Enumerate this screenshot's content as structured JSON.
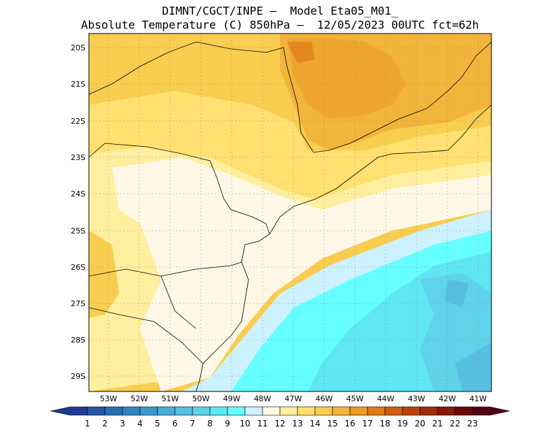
{
  "title": {
    "line1": "DIMNT/CGCT/INPE –  Model Eta05_M01_",
    "line2": "Absolute Temperature (C) 850hPa –  12/05/2023 00UTC fct=62h"
  },
  "lat_labels": [
    "20S",
    "21S",
    "22S",
    "23S",
    "24S",
    "25S",
    "26S",
    "27S",
    "28S",
    "29S"
  ],
  "lon_labels": [
    "53W",
    "52W",
    "51W",
    "50W",
    "49W",
    "48W",
    "47W",
    "46W",
    "45W",
    "44W",
    "43W",
    "42W",
    "41W"
  ],
  "colorbar": {
    "labels": [
      "1",
      "2",
      "3",
      "4",
      "5",
      "6",
      "7",
      "8",
      "9",
      "10",
      "11",
      "12",
      "13",
      "14",
      "15",
      "16",
      "17",
      "18",
      "19",
      "20",
      "21",
      "22",
      "23"
    ],
    "colors": [
      "#1f3a93",
      "#2457a4",
      "#2a6fb4",
      "#3184c2",
      "#3a98cd",
      "#48acd8",
      "#55c0e2",
      "#5fd3ea",
      "#5fe6f3",
      "#66ffff",
      "#ccf2ff",
      "#fff8e6",
      "#ffef9e",
      "#ffe070",
      "#f8cd50",
      "#f2b43a",
      "#eb9a26",
      "#e07a18",
      "#cf5c12",
      "#b8420e",
      "#9e2c0c",
      "#85190a",
      "#6b0808",
      "#560014"
    ]
  }
}
